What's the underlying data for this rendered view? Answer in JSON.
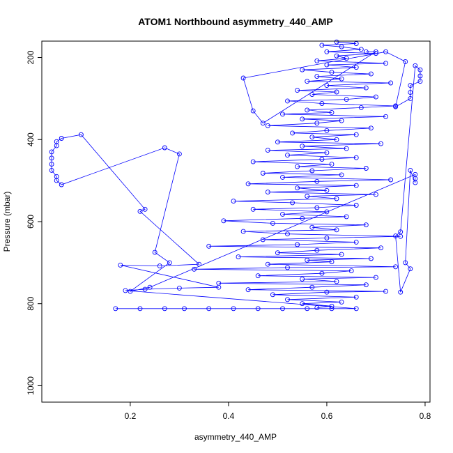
{
  "chart_data": {
    "type": "scatter",
    "title": "ATOM1 Northbound asymmetry_440_AMP",
    "xlabel": "asymmetry_440_AMP",
    "ylabel": "Pressure (mbar)",
    "xlim": [
      0.02,
      0.81
    ],
    "ylim": [
      1040,
      160
    ],
    "y_reversed": true,
    "x_ticks": [
      0.2,
      0.4,
      0.6,
      0.8
    ],
    "x_tick_labels": [
      "0.2",
      "0.4",
      "0.6",
      "0.8"
    ],
    "y_ticks": [
      200,
      400,
      600,
      800,
      1000
    ],
    "y_tick_labels": [
      "200",
      "400",
      "600",
      "800",
      "1000"
    ],
    "marker": "open-circle",
    "connected": true,
    "color": "#0000ff",
    "grid": false,
    "legend": "none",
    "series": [
      {
        "points": [
          [
            0.58,
            810
          ],
          [
            0.61,
            806
          ],
          [
            0.55,
            800
          ],
          [
            0.63,
            796
          ],
          [
            0.52,
            790
          ],
          [
            0.66,
            784
          ],
          [
            0.49,
            778
          ],
          [
            0.6,
            772
          ],
          [
            0.72,
            770
          ],
          [
            0.44,
            766
          ],
          [
            0.57,
            760
          ],
          [
            0.68,
            754
          ],
          [
            0.38,
            750
          ],
          [
            0.62,
            746
          ],
          [
            0.55,
            740
          ],
          [
            0.7,
            736
          ],
          [
            0.46,
            732
          ],
          [
            0.59,
            726
          ],
          [
            0.65,
            720
          ],
          [
            0.33,
            716
          ],
          [
            0.52,
            712
          ],
          [
            0.74,
            710
          ],
          [
            0.48,
            704
          ],
          [
            0.61,
            698
          ],
          [
            0.56,
            694
          ],
          [
            0.69,
            690
          ],
          [
            0.42,
            686
          ],
          [
            0.63,
            680
          ],
          [
            0.5,
            676
          ],
          [
            0.58,
            670
          ],
          [
            0.71,
            664
          ],
          [
            0.36,
            660
          ],
          [
            0.54,
            656
          ],
          [
            0.66,
            650
          ],
          [
            0.47,
            644
          ],
          [
            0.6,
            640
          ],
          [
            0.75,
            636
          ],
          [
            0.52,
            630
          ],
          [
            0.43,
            624
          ],
          [
            0.62,
            620
          ],
          [
            0.57,
            614
          ],
          [
            0.68,
            608
          ],
          [
            0.49,
            604
          ],
          [
            0.39,
            598
          ],
          [
            0.55,
            592
          ],
          [
            0.64,
            588
          ],
          [
            0.51,
            582
          ],
          [
            0.6,
            576
          ],
          [
            0.45,
            570
          ],
          [
            0.58,
            566
          ],
          [
            0.66,
            560
          ],
          [
            0.53,
            554
          ],
          [
            0.41,
            550
          ],
          [
            0.62,
            544
          ],
          [
            0.56,
            538
          ],
          [
            0.7,
            534
          ],
          [
            0.48,
            528
          ],
          [
            0.6,
            524
          ],
          [
            0.54,
            518
          ],
          [
            0.66,
            512
          ],
          [
            0.44,
            508
          ],
          [
            0.58,
            502
          ],
          [
            0.73,
            498
          ],
          [
            0.51,
            492
          ],
          [
            0.63,
            486
          ],
          [
            0.47,
            482
          ],
          [
            0.57,
            476
          ],
          [
            0.68,
            470
          ],
          [
            0.54,
            466
          ],
          [
            0.61,
            460
          ],
          [
            0.45,
            454
          ],
          [
            0.59,
            448
          ],
          [
            0.66,
            444
          ],
          [
            0.52,
            438
          ],
          [
            0.6,
            432
          ],
          [
            0.48,
            426
          ],
          [
            0.64,
            422
          ],
          [
            0.55,
            416
          ],
          [
            0.71,
            410
          ],
          [
            0.5,
            406
          ],
          [
            0.62,
            400
          ],
          [
            0.57,
            394
          ],
          [
            0.66,
            388
          ],
          [
            0.53,
            384
          ],
          [
            0.6,
            378
          ],
          [
            0.69,
            372
          ],
          [
            0.48,
            366
          ],
          [
            0.58,
            360
          ],
          [
            0.63,
            354
          ],
          [
            0.55,
            350
          ],
          [
            0.72,
            344
          ],
          [
            0.51,
            338
          ],
          [
            0.61,
            334
          ],
          [
            0.56,
            328
          ],
          [
            0.67,
            322
          ],
          [
            0.74,
            318
          ],
          [
            0.59,
            312
          ],
          [
            0.52,
            306
          ],
          [
            0.64,
            302
          ],
          [
            0.7,
            296
          ],
          [
            0.57,
            290
          ],
          [
            0.62,
            284
          ],
          [
            0.54,
            280
          ],
          [
            0.68,
            274
          ],
          [
            0.6,
            268
          ],
          [
            0.73,
            262
          ],
          [
            0.56,
            258
          ],
          [
            0.63,
            252
          ],
          [
            0.58,
            246
          ],
          [
            0.69,
            240
          ],
          [
            0.61,
            236
          ],
          [
            0.55,
            230
          ],
          [
            0.66,
            224
          ],
          [
            0.6,
            218
          ],
          [
            0.72,
            214
          ],
          [
            0.58,
            208
          ],
          [
            0.64,
            202
          ],
          [
            0.62,
            196
          ],
          [
            0.7,
            190
          ],
          [
            0.6,
            186
          ],
          [
            0.67,
            180
          ],
          [
            0.63,
            174
          ],
          [
            0.59,
            170
          ],
          [
            0.66,
            166
          ],
          [
            0.62,
            162
          ]
        ]
      },
      {
        "points": [
          [
            0.17,
            812
          ],
          [
            0.22,
            812
          ],
          [
            0.27,
            812
          ],
          [
            0.31,
            812
          ],
          [
            0.36,
            812
          ],
          [
            0.41,
            812
          ],
          [
            0.46,
            812
          ],
          [
            0.51,
            812
          ],
          [
            0.56,
            812
          ],
          [
            0.61,
            812
          ],
          [
            0.66,
            812
          ],
          [
            0.19,
            768
          ],
          [
            0.23,
            765
          ],
          [
            0.3,
            762
          ],
          [
            0.38,
            760
          ],
          [
            0.18,
            706
          ],
          [
            0.26,
            708
          ],
          [
            0.34,
            704
          ],
          [
            0.22,
            575
          ],
          [
            0.23,
            570
          ],
          [
            0.1,
            388
          ],
          [
            0.06,
            397
          ],
          [
            0.05,
            405
          ],
          [
            0.05,
            415
          ],
          [
            0.04,
            430
          ],
          [
            0.04,
            445
          ],
          [
            0.04,
            460
          ],
          [
            0.04,
            475
          ],
          [
            0.05,
            490
          ],
          [
            0.05,
            500
          ],
          [
            0.06,
            510
          ],
          [
            0.27,
            420
          ],
          [
            0.3,
            435
          ],
          [
            0.25,
            675
          ],
          [
            0.28,
            700
          ],
          [
            0.2,
            770
          ],
          [
            0.24,
            760
          ],
          [
            0.78,
            485
          ],
          [
            0.78,
            495
          ],
          [
            0.78,
            505
          ],
          [
            0.77,
            475
          ],
          [
            0.76,
            700
          ],
          [
            0.77,
            715
          ],
          [
            0.75,
            772
          ],
          [
            0.74,
            635
          ],
          [
            0.75,
            625
          ],
          [
            0.78,
            220
          ],
          [
            0.79,
            230
          ],
          [
            0.79,
            245
          ],
          [
            0.79,
            258
          ],
          [
            0.77,
            268
          ],
          [
            0.77,
            285
          ],
          [
            0.77,
            300
          ],
          [
            0.74,
            320
          ],
          [
            0.76,
            210
          ],
          [
            0.72,
            186
          ],
          [
            0.43,
            250
          ],
          [
            0.45,
            330
          ],
          [
            0.47,
            360
          ],
          [
            0.7,
            186
          ],
          [
            0.68,
            186
          ]
        ]
      }
    ]
  }
}
